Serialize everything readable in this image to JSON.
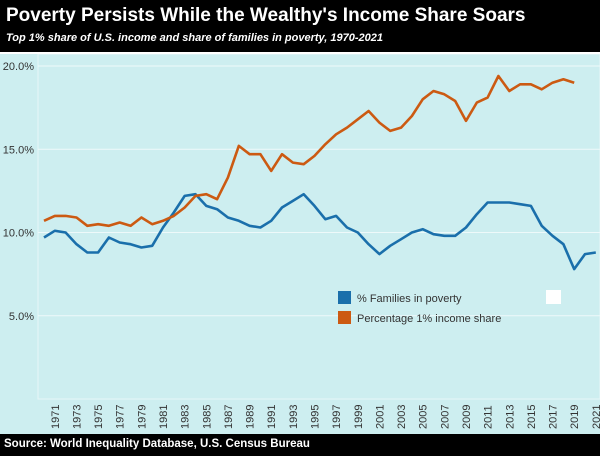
{
  "colors": {
    "poverty": "#1a6fab",
    "income": "#cc5a12",
    "background": "#cdeef0"
  },
  "chart_data": {
    "type": "line",
    "title": "Poverty Persists While the Wealthy's Income Share Soars",
    "subtitle": "Top 1% share of U.S. income and share of families in poverty, 1970-2021",
    "source": "Source: World Inequality Database, U.S. Census Bureau",
    "xlabel": "",
    "ylabel": "",
    "ylim": [
      0,
      20.6
    ],
    "xlim": [
      1970,
      2021
    ],
    "y_ticks": [
      {
        "v": 5,
        "label": "5.0%"
      },
      {
        "v": 10,
        "label": "10.0%"
      },
      {
        "v": 15,
        "label": "15.0%"
      },
      {
        "v": 20,
        "label": "20.0%"
      }
    ],
    "x_ticks": [
      "1971",
      "1973",
      "1975",
      "1977",
      "1979",
      "1981",
      "1983",
      "1985",
      "1987",
      "1989",
      "1991",
      "1993",
      "1995",
      "1997",
      "1999",
      "2001",
      "2003",
      "2005",
      "2007",
      "2009",
      "2011",
      "2013",
      "2015",
      "2017",
      "2019",
      "2021"
    ],
    "legend_position": "center-right",
    "series": [
      {
        "name": "% Families in poverty",
        "start_year": 1970,
        "values": [
          9.7,
          10.1,
          10.0,
          9.3,
          8.8,
          8.8,
          9.7,
          9.4,
          9.3,
          9.1,
          9.2,
          10.3,
          11.2,
          12.2,
          12.3,
          11.6,
          11.4,
          10.9,
          10.7,
          10.4,
          10.3,
          10.7,
          11.5,
          11.9,
          12.3,
          11.6,
          10.8,
          11.0,
          10.3,
          10.0,
          9.3,
          8.7,
          9.2,
          9.6,
          10.0,
          10.2,
          9.9,
          9.8,
          9.8,
          10.3,
          11.1,
          11.8,
          11.8,
          11.8,
          11.7,
          11.6,
          10.4,
          9.8,
          9.3,
          7.8,
          8.7,
          8.8
        ]
      },
      {
        "name": "Percentage 1% income share",
        "start_year": 1970,
        "values": [
          10.7,
          11.0,
          11.0,
          10.9,
          10.4,
          10.5,
          10.4,
          10.6,
          10.4,
          10.9,
          10.5,
          10.7,
          11.0,
          11.5,
          12.2,
          12.3,
          12.0,
          13.3,
          15.2,
          14.7,
          14.7,
          13.7,
          14.7,
          14.2,
          14.1,
          14.6,
          15.3,
          15.9,
          16.3,
          16.8,
          17.3,
          16.6,
          16.1,
          16.3,
          17.0,
          18.0,
          18.5,
          18.3,
          17.9,
          16.7,
          17.8,
          18.1,
          19.4,
          18.5,
          18.9,
          18.9,
          18.6,
          19.0,
          19.2,
          19.0
        ]
      }
    ]
  }
}
